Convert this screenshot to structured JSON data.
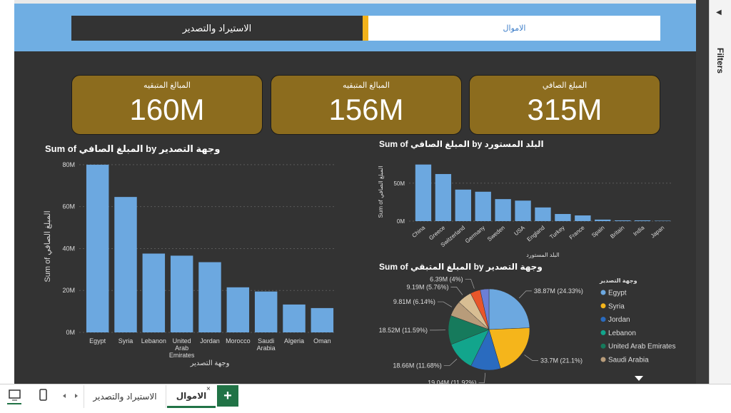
{
  "report_tabs": [
    "الاستيراد والتصدير",
    "الاموال"
  ],
  "cards": [
    {
      "label": "المبالغ المتبقيه",
      "value": "160M"
    },
    {
      "label": "المبالغ المتبقيه",
      "value": "156M"
    },
    {
      "label": "المبلغ الصافي",
      "value": "315M"
    }
  ],
  "chart_data": [
    {
      "type": "bar",
      "title": "Sum of المبلغ الصافي by وجهة التصدير",
      "x_label": "وجهة التصدير",
      "y_label": "Sum of المبلغ الصافي",
      "categories": [
        "Egypt",
        "Syria",
        "Lebanon",
        "United Arab Emirates",
        "Jordan",
        "Morocco",
        "Saudi Arabia",
        "Algeria",
        "Oman"
      ],
      "values": [
        80000000,
        64600000,
        37600000,
        36600000,
        33500000,
        21500000,
        19500000,
        13300000,
        11600000
      ],
      "color": "#6CA8E0",
      "ylim": [
        0,
        82000000
      ],
      "yticks": [
        {
          "value": 0,
          "label": "0M"
        },
        {
          "value": 20000000,
          "label": "20M"
        },
        {
          "value": 40000000,
          "label": "40M"
        },
        {
          "value": 60000000,
          "label": "60M"
        },
        {
          "value": 80000000,
          "label": "80M"
        }
      ],
      "grid": true
    },
    {
      "type": "bar",
      "title": "Sum of المبلغ الصافي by البلد المستورد",
      "x_label": "البلد المستورد",
      "y_label": "Sum of المبلغ الصافي",
      "categories": [
        "China",
        "Greece",
        "Switzerland",
        "Germany",
        "Sweden",
        "USA",
        "England",
        "Turkey",
        "France",
        "Spain",
        "Britain",
        "India",
        "Japan"
      ],
      "values": [
        74500000,
        62000000,
        41500000,
        38700000,
        29000000,
        27000000,
        18000000,
        9400000,
        7500000,
        2000000,
        1000000,
        1000000,
        500000
      ],
      "color": "#6CA8E0",
      "ylim": [
        0,
        77000000
      ],
      "yticks": [
        {
          "value": 0,
          "label": "0M"
        },
        {
          "value": 50000000,
          "label": "50M"
        }
      ],
      "grid": true
    },
    {
      "type": "pie",
      "title": "Sum of المبلغ المتبقي by وجهة التصدير",
      "legend_title": "وجهة التصدير",
      "categories": [
        "Egypt",
        "Syria",
        "Jordan",
        "Lebanon",
        "United Arab Emirates",
        "Saudi Arabia",
        null,
        null,
        null
      ],
      "values": [
        38870000,
        33700000,
        19040000,
        18660000,
        18520000,
        9810000,
        9190000,
        6390000,
        5580000
      ],
      "value_labels": [
        "38.87M (24.33%)",
        "33.7M (21.1%)",
        "19.04M (11.92%)",
        "18.66M (11.68%)",
        "18.52M (11.59%)",
        "9.81M (6.14%)",
        "9.19M (5.76%)",
        "6.39M (4%)",
        null
      ],
      "colors": [
        "#6CA8E0",
        "#F5B51B",
        "#2A6BBF",
        "#12A58C",
        "#167A5C",
        "#B89C7A",
        "#D8BE93",
        "#E8562A",
        "#6B7FD6"
      ]
    }
  ],
  "filters_pane": {
    "title": "Filters"
  },
  "page_tabs": [
    "الاستيراد والتصدير",
    "الاموال"
  ]
}
